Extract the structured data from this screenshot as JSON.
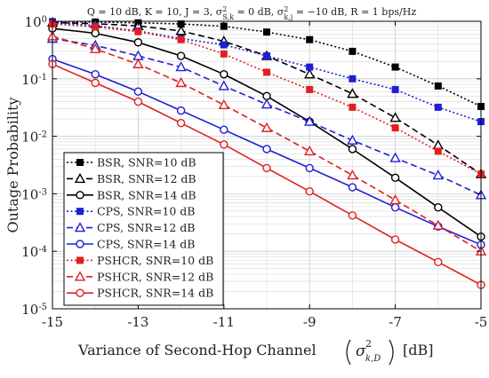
{
  "chart_data": {
    "type": "line",
    "title": "Q = 10 dB, K = 10, J = 3, σ²S,k = 0 dB, σ²k,j = −10 dB, R = 1 bps/Hz",
    "title_parts": {
      "pre": "Q = 10 dB, K = 10, J = 3, σ",
      "sup1": "2",
      "sub1": "S,k",
      "mid": " = 0 dB, σ",
      "sup2": "2",
      "sub2": "k,j",
      "post": " = −10 dB, R = 1 bps/Hz"
    },
    "xlabel": "Variance of Second-Hop Channel",
    "xlabel_parts": {
      "pre": "Variance of Second-Hop Channel",
      "sym": "σ",
      "sup": "2",
      "sub": "k,D",
      "post": "[dB]"
    },
    "ylabel": "Outage Probability",
    "xlim": [
      -15,
      -5
    ],
    "ylim_log10": [
      -5,
      0
    ],
    "yscale": "log",
    "x_ticks": [
      -15,
      -13,
      -11,
      -9,
      -7,
      -5
    ],
    "x_tick_labels": [
      "-15",
      "-13",
      "-11",
      "-9",
      "-7",
      "-5"
    ],
    "y_ticks": [
      {
        "base": "10",
        "exp": "0"
      },
      {
        "base": "10",
        "exp": "-1"
      },
      {
        "base": "10",
        "exp": "-2"
      },
      {
        "base": "10",
        "exp": "-3"
      },
      {
        "base": "10",
        "exp": "-4"
      },
      {
        "base": "10",
        "exp": "-5"
      }
    ],
    "grid": true,
    "legend_position": "bottom-left",
    "x": [
      -15,
      -14,
      -13,
      -12,
      -11,
      -10,
      -9,
      -8,
      -7,
      -6,
      -5
    ],
    "series": [
      {
        "name": "BSR, SNR=10 dB",
        "color": "#000000",
        "dash": "dotted",
        "marker": "square",
        "values": [
          0.98,
          0.97,
          0.94,
          0.9,
          0.82,
          0.65,
          0.48,
          0.3,
          0.16,
          0.075,
          0.033
        ]
      },
      {
        "name": "BSR, SNR=12 dB",
        "color": "#000000",
        "dash": "dashed",
        "marker": "triangle",
        "values": [
          0.95,
          0.91,
          0.83,
          0.68,
          0.45,
          0.25,
          0.12,
          0.055,
          0.021,
          0.007,
          0.0022
        ]
      },
      {
        "name": "BSR, SNR=14 dB",
        "color": "#000000",
        "dash": "solid",
        "marker": "circle",
        "values": [
          0.75,
          0.62,
          0.43,
          0.25,
          0.12,
          0.05,
          0.018,
          0.006,
          0.0019,
          0.00058,
          0.00018
        ]
      },
      {
        "name": "CPS, SNR=10 dB",
        "color": "#1f1fd6",
        "dash": "dotted",
        "marker": "square",
        "values": [
          0.95,
          0.84,
          0.68,
          0.5,
          0.39,
          0.25,
          0.16,
          0.1,
          0.065,
          0.032,
          0.018
        ]
      },
      {
        "name": "CPS, SNR=12 dB",
        "color": "#1f1fd6",
        "dash": "dashed",
        "marker": "triangle",
        "values": [
          0.5,
          0.38,
          0.25,
          0.16,
          0.075,
          0.036,
          0.018,
          0.0085,
          0.0042,
          0.0021,
          0.00095
        ]
      },
      {
        "name": "CPS, SNR=14 dB",
        "color": "#1f1fd6",
        "dash": "solid",
        "marker": "circle",
        "values": [
          0.22,
          0.12,
          0.06,
          0.028,
          0.013,
          0.006,
          0.0028,
          0.0013,
          0.00058,
          0.00027,
          0.00013
        ]
      },
      {
        "name": "PSHCR, SNR=10 dB",
        "color": "#e02020",
        "dash": "dotted",
        "marker": "square",
        "values": [
          0.9,
          0.8,
          0.66,
          0.48,
          0.27,
          0.13,
          0.065,
          0.032,
          0.014,
          0.0055,
          0.0022
        ]
      },
      {
        "name": "PSHCR, SNR=12 dB",
        "color": "#e02020",
        "dash": "dashed",
        "marker": "triangle",
        "values": [
          0.55,
          0.33,
          0.18,
          0.085,
          0.035,
          0.014,
          0.0055,
          0.0021,
          0.00078,
          0.00028,
          0.0001
        ]
      },
      {
        "name": "PSHCR, SNR=14 dB",
        "color": "#e02020",
        "dash": "solid",
        "marker": "circle",
        "values": [
          0.18,
          0.085,
          0.04,
          0.017,
          0.0072,
          0.0028,
          0.0011,
          0.00042,
          0.00016,
          6.5e-05,
          2.6e-05
        ]
      }
    ]
  }
}
